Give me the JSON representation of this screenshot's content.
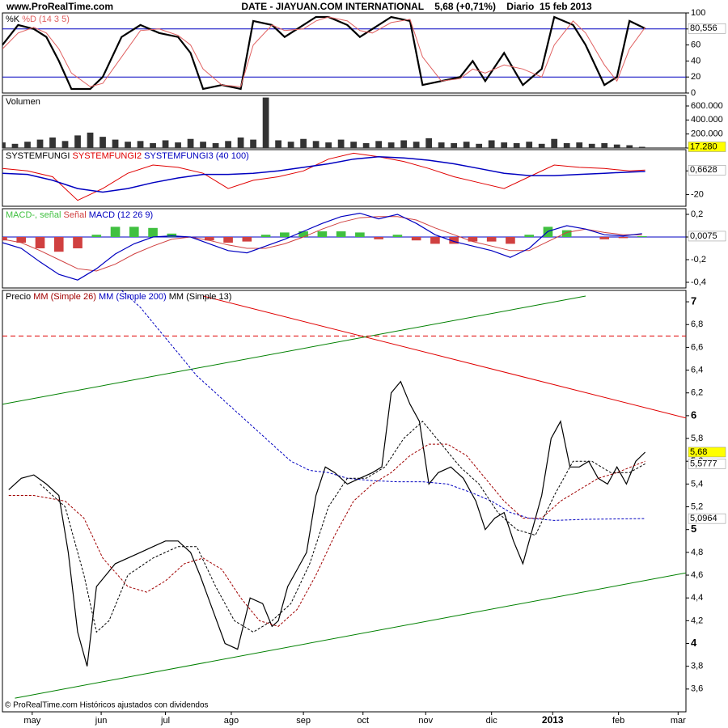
{
  "header": {
    "site": "www.ProRealTime.com",
    "title": "DATE - JIAYUAN.COM INTERNATIONAL    5,68 (+0,71%)    Diario  15 feb 2013",
    "footer": "© ProRealTime.com Históricos ajustados con dividendos"
  },
  "x_axis": {
    "xlim": [
      0,
      218
    ],
    "xticks": [
      {
        "value": 9.5,
        "label": "may"
      },
      {
        "value": 31.5,
        "label": "jun"
      },
      {
        "value": 52,
        "label": "jul"
      },
      {
        "value": 73,
        "label": "ago"
      },
      {
        "value": 96,
        "label": "sep"
      },
      {
        "value": 115,
        "label": "oct"
      },
      {
        "value": 135,
        "label": "nov"
      },
      {
        "value": 156,
        "label": "dic"
      },
      {
        "value": 175.5,
        "label": "2013"
      },
      {
        "value": 196.5,
        "label": "feb"
      },
      {
        "value": 215.5,
        "label": "mar"
      }
    ]
  },
  "chart_data": [
    {
      "type": "line",
      "ylim": [
        0,
        100
      ],
      "yticks": [
        0,
        20,
        40,
        60,
        80,
        100
      ],
      "hlines": [
        20,
        80
      ],
      "hline_color": "#0000c0",
      "x": [
        0,
        5,
        10,
        14,
        18,
        22,
        28,
        32,
        38,
        44,
        50,
        56,
        60,
        64,
        70,
        76,
        80,
        86,
        90,
        96,
        100,
        104,
        110,
        114,
        118,
        124,
        130,
        134,
        140,
        146,
        150,
        154,
        160,
        166,
        172,
        176,
        182,
        186,
        192,
        196,
        200,
        205
      ],
      "series": [
        {
          "name": "%K",
          "color": "#000000",
          "width": 2.2,
          "values": [
            60,
            85,
            80,
            70,
            40,
            5,
            5,
            20,
            70,
            85,
            75,
            70,
            50,
            5,
            10,
            5,
            90,
            85,
            70,
            85,
            95,
            95,
            85,
            70,
            80,
            95,
            90,
            10,
            15,
            20,
            40,
            15,
            50,
            10,
            30,
            95,
            85,
            60,
            10,
            20,
            90,
            80.556
          ],
          "last_label": {
            "value": 80.556,
            "label": "80,556",
            "background": "#ffffff"
          }
        },
        {
          "name": "%D (14 3 5)",
          "color": "#e06060",
          "width": 1,
          "values": [
            55,
            75,
            82,
            75,
            55,
            25,
            8,
            12,
            45,
            78,
            80,
            72,
            60,
            30,
            10,
            8,
            60,
            85,
            78,
            80,
            90,
            95,
            90,
            78,
            75,
            88,
            92,
            45,
            15,
            18,
            30,
            25,
            35,
            30,
            20,
            60,
            90,
            75,
            35,
            15,
            55,
            82
          ]
        }
      ]
    },
    {
      "type": "bar",
      "label": "Volumen",
      "ylim": [
        0,
        750000
      ],
      "yticks": [
        {
          "value": 0,
          "label": "0"
        },
        {
          "value": 200000,
          "label": "200.000"
        },
        {
          "value": 400000,
          "label": "400.000"
        },
        {
          "value": 600000,
          "label": "600.000"
        }
      ],
      "x": [
        0,
        4,
        8,
        12,
        16,
        20,
        24,
        28,
        32,
        36,
        40,
        44,
        48,
        52,
        56,
        60,
        64,
        68,
        72,
        76,
        80,
        84,
        88,
        92,
        96,
        100,
        104,
        108,
        112,
        116,
        120,
        124,
        128,
        132,
        136,
        140,
        144,
        148,
        152,
        156,
        160,
        164,
        168,
        172,
        176,
        180,
        184,
        188,
        192,
        196,
        200,
        204
      ],
      "series": [
        {
          "name": "Volumen",
          "color": "#333333",
          "type": "bar",
          "values": [
            80000,
            60000,
            90000,
            120000,
            150000,
            100000,
            180000,
            220000,
            160000,
            120000,
            90000,
            100000,
            70000,
            110000,
            80000,
            130000,
            90000,
            70000,
            100000,
            150000,
            120000,
            720000,
            110000,
            90000,
            130000,
            100000,
            80000,
            120000,
            90000,
            70000,
            100000,
            80000,
            110000,
            90000,
            140000,
            80000,
            70000,
            90000,
            60000,
            110000,
            80000,
            70000,
            90000,
            60000,
            130000,
            70000,
            80000,
            60000,
            70000,
            50000,
            40000,
            17280
          ],
          "last_label": {
            "value": 17280,
            "label": "17.280",
            "background": "#ffff00"
          }
        }
      ]
    },
    {
      "type": "line",
      "ylim": [
        -30,
        18
      ],
      "yticks": [
        -20,
        0
      ],
      "x": [
        0,
        8,
        16,
        24,
        32,
        40,
        48,
        56,
        64,
        72,
        80,
        88,
        96,
        104,
        112,
        120,
        128,
        136,
        144,
        152,
        160,
        168,
        176,
        184,
        192,
        200,
        205
      ],
      "series": [
        {
          "name": "SYSTEMFUNGI",
          "color": "#000000"
        },
        {
          "name": "SYSTEMFUNGI2",
          "color": "#e00000",
          "width": 1,
          "values": [
            2,
            0,
            -5,
            -25,
            -15,
            -2,
            5,
            3,
            -2,
            -15,
            -8,
            -5,
            0,
            10,
            15,
            12,
            8,
            2,
            -5,
            -10,
            -15,
            -5,
            5,
            3,
            2,
            0,
            0.6628
          ],
          "last_label": {
            "value": 0.6628,
            "label": "0,6628",
            "background": "#ffffff"
          }
        },
        {
          "name": "SYSTEMFUNGI3 (40 100)",
          "color": "#0000c0",
          "width": 1.5,
          "values": [
            -2,
            -3,
            -8,
            -15,
            -18,
            -15,
            -10,
            -6,
            -3,
            -3,
            -2,
            0,
            3,
            6,
            10,
            12,
            11,
            9,
            6,
            2,
            -2,
            -4,
            -4,
            -3,
            -2,
            -1,
            -0.5
          ]
        }
      ]
    },
    {
      "type": "line",
      "ylim": [
        -0.45,
        0.25
      ],
      "yticks": [
        {
          "value": -0.4,
          "label": "-0,4"
        },
        {
          "value": -0.2,
          "label": "-0,2"
        },
        0,
        {
          "value": 0.2,
          "label": "0,2"
        }
      ],
      "hlines": [
        0
      ],
      "hline_color": "#0000c0",
      "x": [
        0,
        6,
        12,
        18,
        24,
        30,
        36,
        42,
        48,
        54,
        60,
        66,
        72,
        78,
        84,
        90,
        96,
        102,
        108,
        114,
        120,
        126,
        132,
        138,
        144,
        150,
        156,
        162,
        168,
        174,
        180,
        186,
        192,
        198,
        204
      ],
      "series": [
        {
          "name": "MACD-, señal",
          "color": "#40c040",
          "negative_color": "#d04040",
          "type": "bar",
          "values": [
            -0.03,
            -0.05,
            -0.1,
            -0.13,
            -0.1,
            0.02,
            0.09,
            0.09,
            0.08,
            0.03,
            0.0,
            -0.03,
            -0.05,
            -0.04,
            0.02,
            0.04,
            0.05,
            0.05,
            0.05,
            0.04,
            -0.02,
            0.02,
            -0.03,
            -0.06,
            -0.06,
            -0.04,
            -0.04,
            -0.06,
            0.02,
            0.09,
            0.06,
            0.0,
            -0.02,
            -0.01,
            0.0075
          ],
          "last_label": {
            "value": 0.0075,
            "label": "0,0075",
            "background": "#ffffff"
          }
        },
        {
          "name": "Señal",
          "color": "#d04040",
          "width": 1,
          "values": [
            -0.02,
            -0.05,
            -0.12,
            -0.2,
            -0.28,
            -0.3,
            -0.24,
            -0.15,
            -0.08,
            -0.02,
            0.0,
            -0.03,
            -0.07,
            -0.1,
            -0.1,
            -0.06,
            0.0,
            0.07,
            0.13,
            0.17,
            0.18,
            0.18,
            0.15,
            0.08,
            0.02,
            -0.04,
            -0.08,
            -0.12,
            -0.12,
            -0.04,
            0.04,
            0.07,
            0.04,
            0.02,
            0.02
          ]
        },
        {
          "name": "MACD (12 26 9)",
          "color": "#0000c0",
          "width": 1.2,
          "values": [
            -0.05,
            -0.1,
            -0.22,
            -0.33,
            -0.38,
            -0.28,
            -0.15,
            -0.06,
            0.0,
            0.01,
            0.0,
            -0.06,
            -0.12,
            -0.14,
            -0.08,
            -0.02,
            0.05,
            0.12,
            0.18,
            0.21,
            0.16,
            0.2,
            0.12,
            0.02,
            -0.04,
            -0.08,
            -0.12,
            -0.18,
            -0.1,
            0.05,
            0.1,
            0.07,
            0.02,
            0.01,
            0.03
          ]
        }
      ]
    },
    {
      "type": "line",
      "ylim": [
        3.4,
        7.1
      ],
      "yticks": [
        {
          "value": 3.6,
          "label": "3,6"
        },
        {
          "value": 3.8,
          "label": "3,8"
        },
        4,
        {
          "value": 4.2,
          "label": "4,2"
        },
        {
          "value": 4.4,
          "label": "4,4"
        },
        {
          "value": 4.6,
          "label": "4,6"
        },
        {
          "value": 4.8,
          "label": "4,8"
        },
        5,
        {
          "value": 5.2,
          "label": "5,2"
        },
        {
          "value": 5.4,
          "label": "5,4"
        },
        {
          "value": 5.6,
          "label": "5,6"
        },
        {
          "value": 5.8,
          "label": "5,8"
        },
        6,
        {
          "value": 6.2,
          "label": "6,2"
        },
        {
          "value": 6.4,
          "label": "6,4"
        },
        {
          "value": 6.6,
          "label": "6,6"
        },
        {
          "value": 6.8,
          "label": "6,8"
        },
        7
      ],
      "trend_lines": [
        {
          "x": [
            64,
            218
          ],
          "values": [
            7.05,
            5.98
          ],
          "color": "#e00000"
        },
        {
          "x": [
            0,
            186
          ],
          "values": [
            6.1,
            7.05
          ],
          "color": "#008000"
        },
        {
          "x": [
            4,
            218
          ],
          "values": [
            3.52,
            4.62
          ],
          "color": "#008000"
        },
        {
          "x": [
            0,
            218
          ],
          "values": [
            6.7,
            6.7
          ],
          "color": "#e00000",
          "dashed": true
        }
      ],
      "series": [
        {
          "name": "Precio",
          "color": "#000000",
          "width": 1.2,
          "x": [
            2,
            6,
            10,
            14,
            18,
            21,
            24,
            27,
            30,
            33,
            36,
            40,
            44,
            48,
            52,
            56,
            60,
            63,
            67,
            71,
            75,
            79,
            83,
            86,
            88,
            91,
            94,
            97,
            100,
            103,
            106,
            110,
            114,
            118,
            121,
            124,
            127,
            130,
            133,
            136,
            139,
            143,
            147,
            151,
            154,
            157,
            160,
            163,
            166,
            169,
            172,
            175,
            178,
            181,
            184,
            187,
            190,
            193,
            196,
            199,
            202,
            205
          ],
          "values": [
            5.35,
            5.45,
            5.48,
            5.4,
            5.3,
            4.8,
            4.1,
            3.8,
            4.5,
            4.6,
            4.7,
            4.75,
            4.8,
            4.85,
            4.9,
            4.9,
            4.8,
            4.6,
            4.3,
            4.0,
            3.95,
            4.4,
            4.35,
            4.15,
            4.2,
            4.5,
            4.65,
            4.8,
            5.3,
            5.55,
            5.5,
            5.4,
            5.45,
            5.5,
            5.55,
            6.2,
            6.3,
            6.1,
            5.95,
            5.4,
            5.5,
            5.55,
            5.45,
            5.25,
            5.0,
            5.1,
            5.15,
            4.9,
            4.7,
            5.0,
            5.3,
            5.8,
            5.95,
            5.55,
            5.55,
            5.6,
            5.45,
            5.4,
            5.55,
            5.4,
            5.6,
            5.68
          ],
          "last_label": {
            "value": 5.68,
            "label": "5,68",
            "background": "#ffff00"
          }
        },
        {
          "name": "MM (Simple 26)",
          "color": "#a00000",
          "width": 1,
          "dashed": true,
          "x": [
            2,
            10,
            20,
            26,
            32,
            40,
            46,
            52,
            58,
            64,
            70,
            76,
            82,
            88,
            94,
            100,
            106,
            112,
            118,
            124,
            130,
            136,
            142,
            148,
            154,
            160,
            166,
            172,
            178,
            184,
            190,
            196,
            205
          ],
          "values": [
            5.3,
            5.3,
            5.25,
            5.1,
            4.75,
            4.5,
            4.45,
            4.55,
            4.7,
            4.75,
            4.65,
            4.4,
            4.2,
            4.15,
            4.3,
            4.6,
            4.95,
            5.25,
            5.4,
            5.5,
            5.65,
            5.75,
            5.75,
            5.65,
            5.45,
            5.25,
            5.1,
            5.1,
            5.25,
            5.35,
            5.45,
            5.5,
            5.6
          ]
        },
        {
          "name": "MM (Simple 200)",
          "color": "#0000c0",
          "width": 1,
          "dashed": true,
          "x": [
            38,
            44,
            50,
            56,
            62,
            68,
            74,
            80,
            86,
            92,
            98,
            104,
            110,
            118,
            126,
            134,
            142,
            150,
            156,
            162,
            168,
            176,
            186,
            205
          ],
          "values": [
            7.1,
            6.95,
            6.75,
            6.55,
            6.35,
            6.2,
            6.05,
            5.9,
            5.75,
            5.6,
            5.52,
            5.5,
            5.45,
            5.43,
            5.42,
            5.42,
            5.4,
            5.32,
            5.25,
            5.15,
            5.1,
            5.08,
            5.09,
            5.0964
          ],
          "last_label": {
            "value": 5.0964,
            "label": "5,0964",
            "background": "#ffffff"
          }
        },
        {
          "name": "MM (Simple 13)",
          "color": "#000000",
          "width": 1,
          "dashed": true,
          "x": [
            12,
            20,
            26,
            30,
            34,
            40,
            48,
            56,
            62,
            68,
            74,
            80,
            86,
            92,
            98,
            104,
            110,
            116,
            122,
            128,
            134,
            140,
            146,
            152,
            158,
            164,
            170,
            176,
            182,
            188,
            194,
            200,
            205
          ],
          "values": [
            5.4,
            5.2,
            4.6,
            4.1,
            4.2,
            4.6,
            4.75,
            4.85,
            4.85,
            4.5,
            4.2,
            4.1,
            4.2,
            4.35,
            4.7,
            5.2,
            5.45,
            5.45,
            5.55,
            5.8,
            5.95,
            5.75,
            5.55,
            5.4,
            5.15,
            5.0,
            4.95,
            5.3,
            5.6,
            5.6,
            5.5,
            5.5,
            5.5777
          ],
          "last_label": {
            "value": 5.5777,
            "label": "5,5777",
            "background": "#ffffff"
          }
        }
      ]
    }
  ]
}
